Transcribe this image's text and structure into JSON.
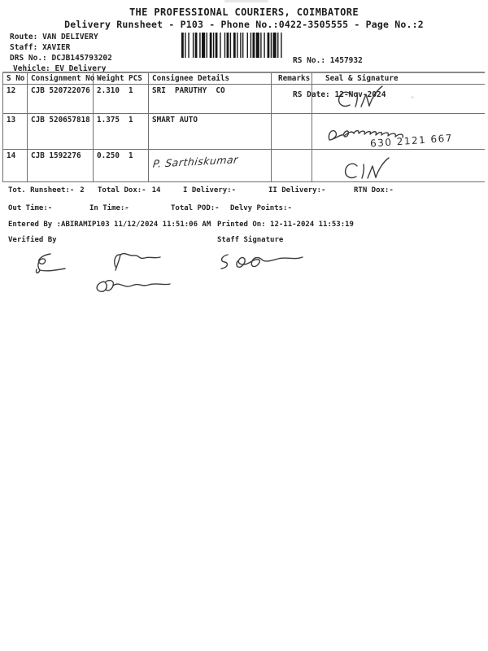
{
  "header": {
    "title": "THE PROFESSIONAL COURIERS, COIMBATORE",
    "subtitle": "Delivery Runsheet - P103 - Phone No.:0422-3505555 - Page No.:2",
    "info": [
      {
        "label": "Route:",
        "value": "VAN DELIVERY"
      },
      {
        "label": "Staff:",
        "value": "XAVIER"
      },
      {
        "label": "DRS No.:",
        "value": "DCJB145793202"
      },
      {
        "label": "Vehicle:",
        "value": "EV Delivery"
      }
    ],
    "barcode_icon": "code128-barcode",
    "rs_no_label": "RS No.:",
    "rs_no": "1457932",
    "rs_date_label": "RS Date:",
    "rs_date": "12-Nov-2024"
  },
  "table": {
    "headers": {
      "s_no": "S No",
      "consignment": "Consignment No",
      "weight": "Weight",
      "pcs": "PCS",
      "consignee": "Consignee Details",
      "remarks": "Remarks",
      "seal": "Seal & Signature"
    },
    "rows": [
      {
        "s_no": "12",
        "consignment": "CJB 520722076",
        "weight": "2.310",
        "pcs": "1",
        "consignee": "SRI  PARUTHY  CO",
        "remarks": "",
        "seal_note": ""
      },
      {
        "s_no": "13",
        "consignment": "CJB 520657818",
        "weight": "1.375",
        "pcs": "1",
        "consignee": "SMART AUTO",
        "remarks": "",
        "seal_note": "630 2121 667"
      },
      {
        "s_no": "14",
        "consignment": "CJB 1592276",
        "weight": "0.250",
        "pcs": "1",
        "consignee": "",
        "consignee_handwritten": "P. Sarthiskumar",
        "remarks": "",
        "seal_note": ""
      }
    ]
  },
  "summary": {
    "tot_runsheet_label": "Tot. Runsheet:-",
    "tot_runsheet_value": "2",
    "total_dox_label": "Total Dox:-",
    "total_dox_value": "14",
    "i_delivery_label": "I Delivery:-",
    "ii_delivery_label": "II Delivery:-",
    "rtn_dox_label": "RTN Dox:-",
    "out_time_label": "Out Time:-",
    "in_time_label": "In Time:-",
    "total_pod_label": "Total POD:-",
    "delvy_points_label": "Delvy Points:-",
    "entered_by": "Entered By :ABIRAMIP103 11/12/2024 11:51:06 AM",
    "printed_on": "Printed On: 12-11-2024 11:53:19",
    "verified_by_label": "Verified By",
    "staff_signature_label": "Staff Signature"
  },
  "colors": {
    "ink": "#242424",
    "table_line": "#6f6f6f",
    "paper": "#ffffff"
  }
}
